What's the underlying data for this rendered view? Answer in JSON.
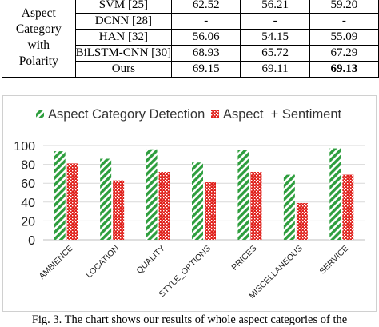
{
  "table": {
    "group_label_lines": [
      "Aspect",
      "Category",
      "with",
      "Polarity"
    ],
    "rows": [
      {
        "model": "SVM [25]",
        "values": [
          "62.52",
          "56.21",
          "59.20"
        ]
      },
      {
        "model": "DCNN [28]",
        "values": [
          "-",
          "-",
          "-"
        ]
      },
      {
        "model": "HAN [32]",
        "values": [
          "56.06",
          "54.15",
          "55.09"
        ]
      },
      {
        "model": "BiLSTM-CNN [30]",
        "values": [
          "68.93",
          "65.72",
          "67.29"
        ]
      },
      {
        "model": "Ours",
        "values": [
          "69.15",
          "69.11",
          "69.13"
        ],
        "bold_last": true
      }
    ]
  },
  "chart_data": {
    "type": "bar",
    "categories": [
      "AMBIENCE",
      "LOCATION",
      "QUALITY",
      "STYLE_OPTIONS",
      "PRICES",
      "MISCELLANEOUS",
      "SERVICE"
    ],
    "series": [
      {
        "name": "Aspect Category Detection",
        "values": [
          94,
          86,
          96,
          82,
          95,
          69,
          97
        ],
        "color": "#2e9e3e",
        "pattern": "diagonal-stripes"
      },
      {
        "name": "Aspect  + Sentiment",
        "values": [
          81,
          63,
          72,
          61,
          72,
          39,
          69
        ],
        "color": "#e0201b",
        "pattern": "dotted"
      }
    ],
    "ylim": [
      0,
      100
    ],
    "yticks": [
      0,
      20,
      40,
      60,
      80,
      100
    ],
    "legend_position": "top",
    "grid": true
  },
  "caption": "Fig. 3. The chart shows our results of whole aspect categories of the"
}
